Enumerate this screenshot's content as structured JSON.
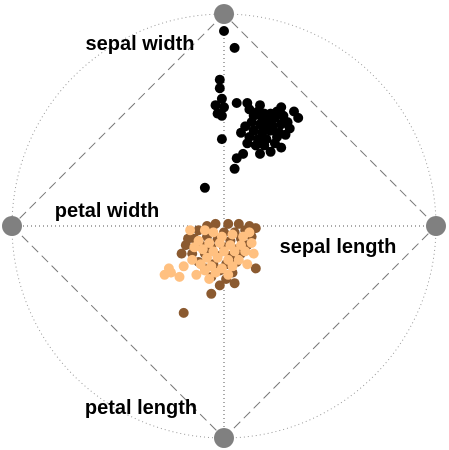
{
  "chart_data": {
    "type": "scatter",
    "subtype": "radviz",
    "title": "",
    "grid": false,
    "anchors": [
      {
        "name": "sepal length",
        "angle_deg": 0
      },
      {
        "name": "sepal width",
        "angle_deg": 90
      },
      {
        "name": "petal width",
        "angle_deg": 180
      },
      {
        "name": "petal length",
        "angle_deg": 270
      }
    ],
    "series": [
      {
        "color": "#000000",
        "points": [
          [
            0.0,
            0.92
          ],
          [
            0.05,
            0.84
          ],
          [
            -0.02,
            0.69
          ],
          [
            -0.02,
            0.65
          ],
          [
            -0.01,
            0.6
          ],
          [
            -0.04,
            0.57
          ],
          [
            0.0,
            0.56
          ],
          [
            -0.01,
            0.52
          ],
          [
            -0.03,
            0.53
          ],
          [
            0.06,
            0.58
          ],
          [
            0.11,
            0.58
          ],
          [
            0.17,
            0.57
          ],
          [
            0.27,
            0.56
          ],
          [
            0.12,
            0.55
          ],
          [
            0.16,
            0.54
          ],
          [
            0.19,
            0.53
          ],
          [
            0.22,
            0.53
          ],
          [
            0.25,
            0.54
          ],
          [
            0.14,
            0.52
          ],
          [
            0.18,
            0.51
          ],
          [
            0.21,
            0.5
          ],
          [
            0.24,
            0.51
          ],
          [
            0.28,
            0.52
          ],
          [
            0.33,
            0.54
          ],
          [
            0.13,
            0.49
          ],
          [
            0.17,
            0.48
          ],
          [
            0.2,
            0.47
          ],
          [
            0.23,
            0.47
          ],
          [
            0.27,
            0.48
          ],
          [
            0.3,
            0.49
          ],
          [
            0.35,
            0.51
          ],
          [
            0.1,
            0.47
          ],
          [
            0.14,
            0.45
          ],
          [
            0.18,
            0.44
          ],
          [
            0.22,
            0.45
          ],
          [
            0.26,
            0.44
          ],
          [
            0.31,
            0.46
          ],
          [
            0.08,
            0.44
          ],
          [
            0.12,
            0.42
          ],
          [
            0.16,
            0.41
          ],
          [
            0.2,
            0.41
          ],
          [
            0.25,
            0.42
          ],
          [
            0.29,
            0.43
          ],
          [
            0.11,
            0.39
          ],
          [
            0.15,
            0.38
          ],
          [
            0.19,
            0.38
          ],
          [
            0.24,
            0.39
          ],
          [
            0.09,
            0.34
          ],
          [
            0.22,
            0.35
          ],
          [
            0.17,
            0.34
          ],
          [
            0.27,
            0.37
          ],
          [
            0.06,
            0.32
          ],
          [
            -0.01,
            0.41
          ],
          [
            0.05,
            0.27
          ],
          [
            -0.09,
            0.18
          ]
        ]
      },
      {
        "color": "#8b5a30",
        "points": [
          [
            -0.08,
            0.0
          ],
          [
            -0.04,
            0.01
          ],
          [
            0.02,
            0.01
          ],
          [
            0.07,
            0.01
          ],
          [
            0.12,
            0.0
          ],
          [
            -0.12,
            -0.02
          ],
          [
            -0.06,
            -0.02
          ],
          [
            0.0,
            -0.03
          ],
          [
            0.05,
            -0.03
          ],
          [
            0.1,
            -0.02
          ],
          [
            0.15,
            -0.01
          ],
          [
            -0.14,
            -0.06
          ],
          [
            -0.08,
            -0.05
          ],
          [
            -0.03,
            -0.06
          ],
          [
            0.03,
            -0.07
          ],
          [
            0.08,
            -0.06
          ],
          [
            0.13,
            -0.05
          ],
          [
            -0.18,
            -0.09
          ],
          [
            -0.11,
            -0.09
          ],
          [
            -0.06,
            -0.1
          ],
          [
            0.0,
            -0.1
          ],
          [
            0.06,
            -0.11
          ],
          [
            0.11,
            -0.09
          ],
          [
            -0.15,
            -0.13
          ],
          [
            -0.09,
            -0.13
          ],
          [
            -0.03,
            -0.14
          ],
          [
            0.03,
            -0.14
          ],
          [
            0.08,
            -0.13
          ],
          [
            -0.12,
            -0.17
          ],
          [
            -0.05,
            -0.18
          ],
          [
            0.01,
            -0.18
          ],
          [
            0.06,
            -0.17
          ],
          [
            -0.09,
            -0.2
          ],
          [
            -0.02,
            -0.21
          ],
          [
            0.04,
            -0.22
          ],
          [
            -0.06,
            -0.24
          ],
          [
            0.01,
            -0.25
          ],
          [
            0.05,
            -0.27
          ],
          [
            -0.02,
            -0.28
          ],
          [
            -0.06,
            -0.32
          ],
          [
            -0.19,
            -0.41
          ],
          [
            0.15,
            -0.2
          ],
          [
            -0.17,
            -0.06
          ],
          [
            -0.2,
            -0.13
          ]
        ]
      },
      {
        "color": "#ffc080",
        "points": [
          [
            -0.09,
            -0.02
          ],
          [
            -0.05,
            -0.03
          ],
          [
            -0.01,
            -0.05
          ],
          [
            0.04,
            -0.04
          ],
          [
            0.09,
            -0.05
          ],
          [
            -0.12,
            -0.07
          ],
          [
            -0.07,
            -0.08
          ],
          [
            -0.02,
            -0.08
          ],
          [
            0.03,
            -0.09
          ],
          [
            0.08,
            -0.09
          ],
          [
            0.13,
            -0.08
          ],
          [
            -0.1,
            -0.11
          ],
          [
            -0.05,
            -0.12
          ],
          [
            0.0,
            -0.12
          ],
          [
            0.05,
            -0.12
          ],
          [
            0.1,
            -0.12
          ],
          [
            -0.14,
            -0.1
          ],
          [
            -0.08,
            -0.15
          ],
          [
            -0.03,
            -0.15
          ],
          [
            0.02,
            -0.16
          ],
          [
            0.07,
            -0.16
          ],
          [
            -0.11,
            -0.18
          ],
          [
            -0.06,
            -0.19
          ],
          [
            -0.01,
            -0.2
          ],
          [
            0.04,
            -0.19
          ],
          [
            -0.15,
            -0.16
          ],
          [
            -0.09,
            -0.21
          ],
          [
            -0.04,
            -0.22
          ],
          [
            0.02,
            -0.23
          ],
          [
            -0.19,
            -0.19
          ],
          [
            -0.25,
            -0.22
          ],
          [
            -0.28,
            -0.23
          ],
          [
            -0.26,
            -0.2
          ],
          [
            -0.21,
            -0.24
          ],
          [
            -0.13,
            -0.23
          ],
          [
            -0.07,
            -0.25
          ],
          [
            0.11,
            -0.18
          ],
          [
            0.14,
            -0.13
          ],
          [
            -0.16,
            -0.02
          ],
          [
            0.12,
            -0.03
          ]
        ]
      }
    ]
  }
}
